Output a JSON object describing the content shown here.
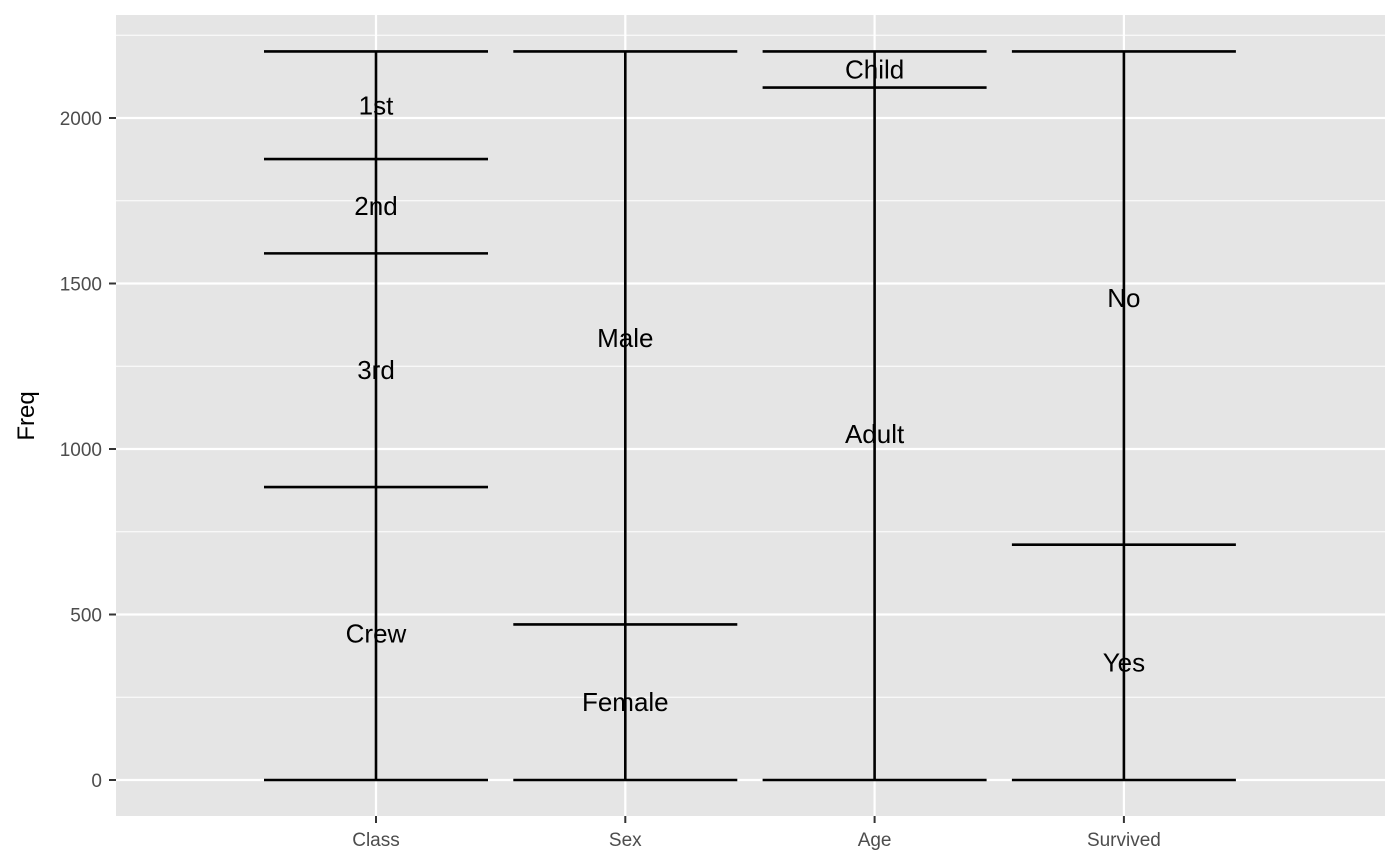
{
  "chart_data": {
    "type": "alluvial-strata",
    "axes": [
      "Class",
      "Sex",
      "Age",
      "Survived"
    ],
    "ylabel": "Freq",
    "xlabel": "",
    "ylim": [
      -110,
      2310
    ],
    "yticks": [
      0,
      500,
      1000,
      1500,
      2000
    ],
    "grid": true,
    "strata": [
      {
        "axis": "Class",
        "segments": [
          {
            "label": "Crew",
            "value": 885
          },
          {
            "label": "3rd",
            "value": 706
          },
          {
            "label": "2nd",
            "value": 285
          },
          {
            "label": "1st",
            "value": 325
          }
        ]
      },
      {
        "axis": "Sex",
        "segments": [
          {
            "label": "Female",
            "value": 470
          },
          {
            "label": "Male",
            "value": 1731
          }
        ]
      },
      {
        "axis": "Age",
        "segments": [
          {
            "label": "Adult",
            "value": 2092
          },
          {
            "label": "Child",
            "value": 109
          }
        ]
      },
      {
        "axis": "Survived",
        "segments": [
          {
            "label": "Yes",
            "value": 711
          },
          {
            "label": "No",
            "value": 1490
          }
        ]
      }
    ]
  }
}
